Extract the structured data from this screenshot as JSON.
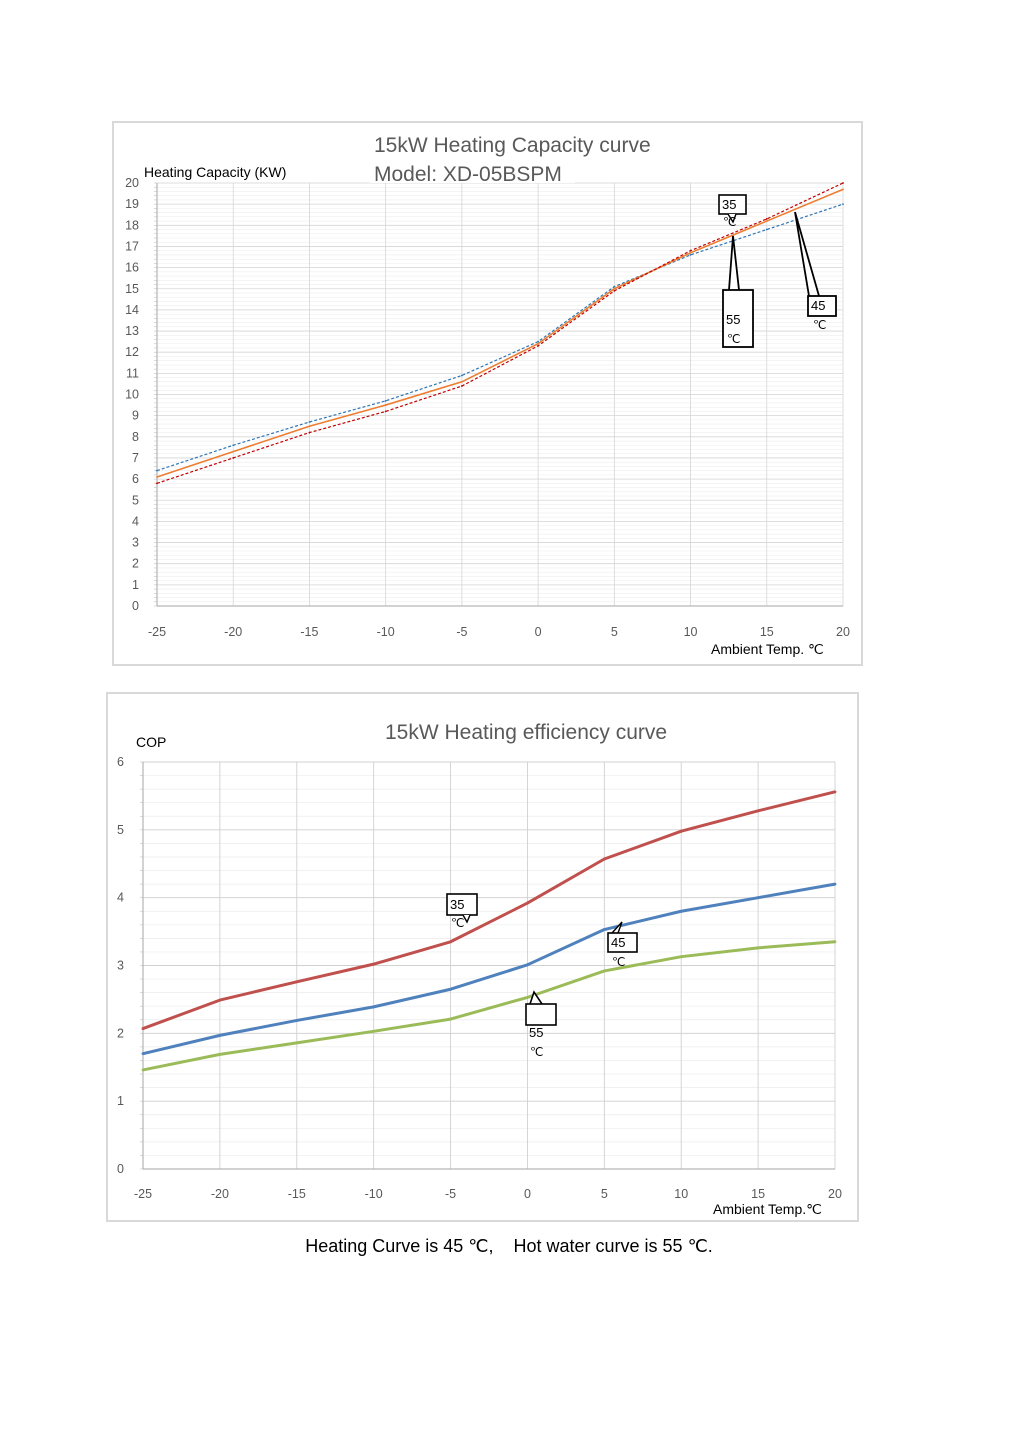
{
  "chart_data": [
    {
      "type": "line",
      "title": "15kW Heating Capacity curve",
      "subtitle": "Model: XD-05BSPM",
      "ylabel": "Heating Capacity  (KW)",
      "xlabel": "Ambient Temp. ℃",
      "x": [
        -25,
        -20,
        -15,
        -10,
        -5,
        0,
        5,
        10,
        15,
        20
      ],
      "xlim": [
        -25,
        20
      ],
      "ylim": [
        0,
        20
      ],
      "yticks": [
        0,
        1,
        2,
        3,
        4,
        5,
        6,
        7,
        8,
        9,
        10,
        11,
        12,
        13,
        14,
        15,
        16,
        17,
        18,
        19,
        20
      ],
      "xticks": [
        -25,
        -20,
        -15,
        -10,
        -5,
        0,
        5,
        10,
        15,
        20
      ],
      "grid": true,
      "series": [
        {
          "name": "35 ℃",
          "color": "#2e75b6",
          "dash": true,
          "values": [
            6.4,
            7.6,
            8.7,
            9.7,
            10.9,
            12.5,
            15.1,
            16.6,
            17.8,
            19.0
          ]
        },
        {
          "name": "45 ℃",
          "color": "#ed7d31",
          "dash": false,
          "values": [
            6.1,
            7.3,
            8.5,
            9.5,
            10.6,
            12.4,
            15.0,
            16.7,
            18.2,
            19.7
          ]
        },
        {
          "name": "55 ℃",
          "color": "#c00000",
          "dash": true,
          "values": [
            5.8,
            7.0,
            8.2,
            9.2,
            10.4,
            12.3,
            14.9,
            16.8,
            18.3,
            20.0
          ]
        }
      ],
      "callouts": [
        {
          "line1": "35",
          "line2": "℃"
        },
        {
          "line1": "55",
          "line2": "℃"
        },
        {
          "line1": "45",
          "line2": "℃"
        }
      ]
    },
    {
      "type": "line",
      "title": "15kW Heating efficiency curve",
      "ylabel": "COP",
      "xlabel": "Ambient Temp.℃",
      "x": [
        -25,
        -20,
        -15,
        -10,
        -5,
        0,
        5,
        10,
        15,
        20
      ],
      "xlim": [
        -25,
        20
      ],
      "ylim": [
        0,
        6
      ],
      "yticks": [
        0,
        1,
        2,
        3,
        4,
        5,
        6
      ],
      "xticks": [
        -25,
        -20,
        -15,
        -10,
        -5,
        0,
        5,
        10,
        15,
        20
      ],
      "grid": true,
      "series": [
        {
          "name": "35 ℃",
          "color": "#c0504d",
          "values": [
            2.07,
            2.49,
            2.76,
            3.02,
            3.35,
            3.92,
            4.57,
            4.98,
            5.28,
            5.56
          ]
        },
        {
          "name": "45 ℃",
          "color": "#4f81bd",
          "values": [
            1.7,
            1.97,
            2.19,
            2.39,
            2.65,
            3.01,
            3.53,
            3.8,
            4.0,
            4.2
          ]
        },
        {
          "name": "55 ℃",
          "color": "#9bbb59",
          "values": [
            1.46,
            1.69,
            1.86,
            2.03,
            2.21,
            2.53,
            2.92,
            3.13,
            3.26,
            3.35
          ]
        }
      ],
      "callouts": [
        {
          "line1": "35",
          "line2": "℃"
        },
        {
          "line1": "45",
          "line2": "℃"
        },
        {
          "line1": "55",
          "line2": "℃"
        }
      ]
    }
  ],
  "footer": {
    "text": "Heating Curve is 45 ℃,    Hot water curve is 55 ℃."
  }
}
